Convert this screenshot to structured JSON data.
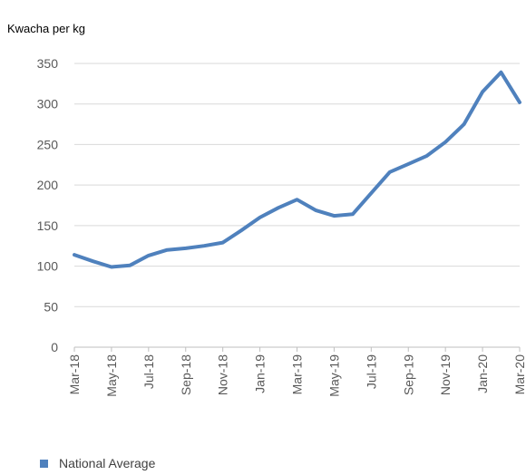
{
  "chart_data": {
    "type": "line",
    "ylabel": "Kwacha per kg",
    "ylim": [
      0,
      350
    ],
    "yticks": [
      0,
      50,
      100,
      150,
      200,
      250,
      300,
      350
    ],
    "grid": true,
    "legend": "bottom-left",
    "x": [
      "Mar-18",
      "Apr-18",
      "May-18",
      "Jun-18",
      "Jul-18",
      "Aug-18",
      "Sep-18",
      "Oct-18",
      "Nov-18",
      "Dec-18",
      "Jan-19",
      "Feb-19",
      "Mar-19",
      "Apr-19",
      "May-19",
      "Jun-19",
      "Jul-19",
      "Aug-19",
      "Sep-19",
      "Oct-19",
      "Nov-19",
      "Dec-19",
      "Jan-20",
      "Feb-20",
      "Mar-20"
    ],
    "xtick_labels": [
      "Mar-18",
      "May-18",
      "Jul-18",
      "Sep-18",
      "Nov-18",
      "Jan-19",
      "Mar-19",
      "May-19",
      "Jul-19",
      "Sep-19",
      "Nov-19",
      "Jan-20",
      "Mar-20"
    ],
    "series": [
      {
        "name": "National Average",
        "color": "#4f81bd",
        "values": [
          114,
          106,
          99,
          101,
          113,
          120,
          122,
          125,
          129,
          144,
          160,
          172,
          182,
          169,
          162,
          164,
          190,
          216,
          226,
          236,
          253,
          275,
          315,
          339,
          302
        ]
      }
    ]
  }
}
